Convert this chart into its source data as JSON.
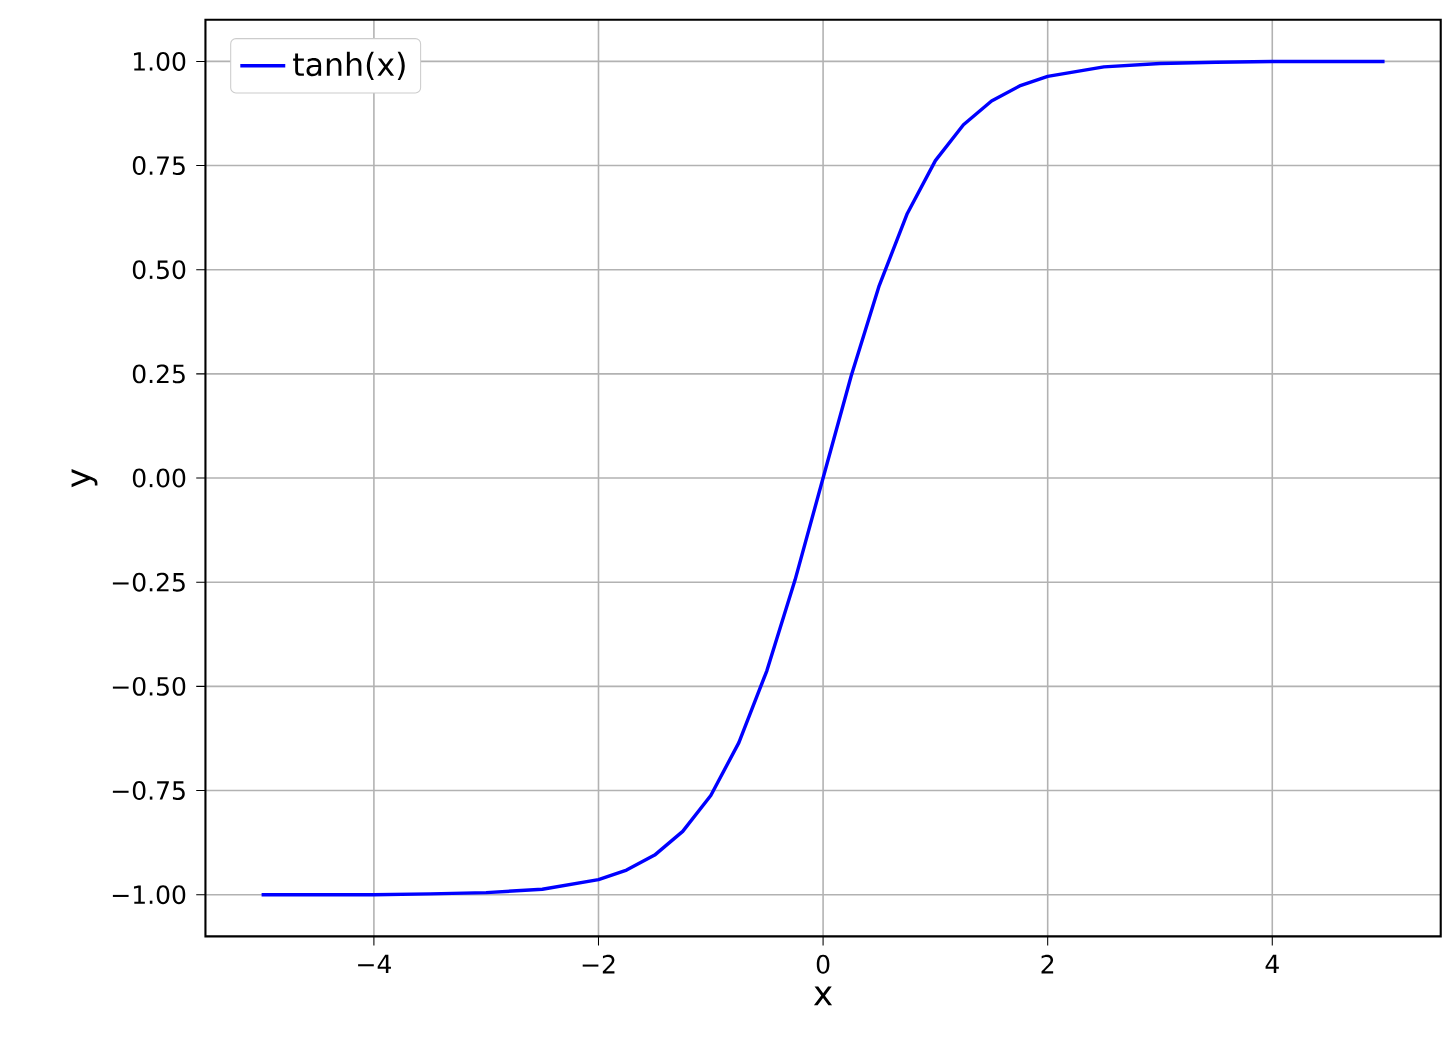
{
  "chart_data": {
    "type": "line",
    "xlabel": "x",
    "ylabel": "y",
    "x": [
      -5,
      -4.5,
      -4,
      -3.5,
      -3,
      -2.5,
      -2,
      -1.75,
      -1.5,
      -1.25,
      -1,
      -0.75,
      -0.5,
      -0.25,
      0,
      0.25,
      0.5,
      0.75,
      1,
      1.25,
      1.5,
      1.75,
      2,
      2.5,
      3,
      3.5,
      4,
      4.5,
      5
    ],
    "series": [
      {
        "name": "tanh(x)",
        "color": "#0000ff",
        "values": [
          -1.0,
          -1.0,
          -1.0,
          -0.998,
          -0.995,
          -0.987,
          -0.964,
          -0.941,
          -0.905,
          -0.848,
          -0.762,
          -0.635,
          -0.462,
          -0.245,
          0.0,
          0.245,
          0.462,
          0.635,
          0.762,
          0.848,
          0.905,
          0.941,
          0.964,
          0.987,
          0.995,
          0.998,
          1.0,
          1.0,
          1.0
        ]
      }
    ],
    "xlim": [
      -5.5,
      5.5
    ],
    "ylim": [
      -1.1,
      1.1
    ],
    "xticks": [
      {
        "value": -4,
        "label": "−4"
      },
      {
        "value": -2,
        "label": "−2"
      },
      0,
      2,
      4
    ],
    "yticks": [
      {
        "value": -1,
        "label": "−1.00"
      },
      {
        "value": -0.75,
        "label": "−0.75"
      },
      {
        "value": -0.5,
        "label": "−0.50"
      },
      {
        "value": -0.25,
        "label": "−0.25"
      },
      {
        "value": 0,
        "label": "0.00"
      },
      {
        "value": 0.25,
        "label": "0.25"
      },
      {
        "value": 0.5,
        "label": "0.50"
      },
      {
        "value": 0.75,
        "label": "0.75"
      },
      {
        "value": 1,
        "label": "1.00"
      }
    ],
    "grid": true,
    "legend": "top left",
    "marker": "none",
    "line_style": "solid"
  }
}
